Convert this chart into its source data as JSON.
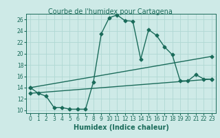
{
  "title": "Courbe de l'humidex pour Cartagena",
  "xlabel": "Humidex (Indice chaleur)",
  "bg_color": "#ceeae7",
  "line_color": "#1a6b5a",
  "grid_color": "#b0d8d3",
  "title_bg": "#ceeae7",
  "xlim": [
    -0.5,
    23.5
  ],
  "ylim": [
    9.5,
    27
  ],
  "xticks": [
    0,
    1,
    2,
    3,
    4,
    5,
    6,
    7,
    8,
    9,
    10,
    11,
    12,
    13,
    14,
    15,
    16,
    17,
    18,
    19,
    20,
    21,
    22,
    23
  ],
  "yticks": [
    10,
    12,
    14,
    16,
    18,
    20,
    22,
    24,
    26
  ],
  "line1_x": [
    0,
    1,
    2,
    3,
    4,
    5,
    6,
    7,
    8,
    9,
    10,
    11,
    12,
    13,
    14,
    15,
    16,
    17,
    18,
    19,
    20,
    21,
    22,
    23
  ],
  "line1_y": [
    14.0,
    13.0,
    12.5,
    10.5,
    10.5,
    10.2,
    10.2,
    10.2,
    15.0,
    23.5,
    26.3,
    26.8,
    25.8,
    25.7,
    19.0,
    24.2,
    23.2,
    21.2,
    19.8,
    15.2,
    15.2,
    16.3,
    15.5,
    15.5
  ],
  "line2_x": [
    0,
    23
  ],
  "line2_y": [
    14.0,
    19.5
  ],
  "line3_x": [
    0,
    23
  ],
  "line3_y": [
    13.0,
    15.5
  ],
  "marker": "D",
  "markersize": 2.5,
  "linewidth": 1.0,
  "title_fontsize": 7,
  "axis_fontsize": 7,
  "tick_fontsize": 5.5
}
